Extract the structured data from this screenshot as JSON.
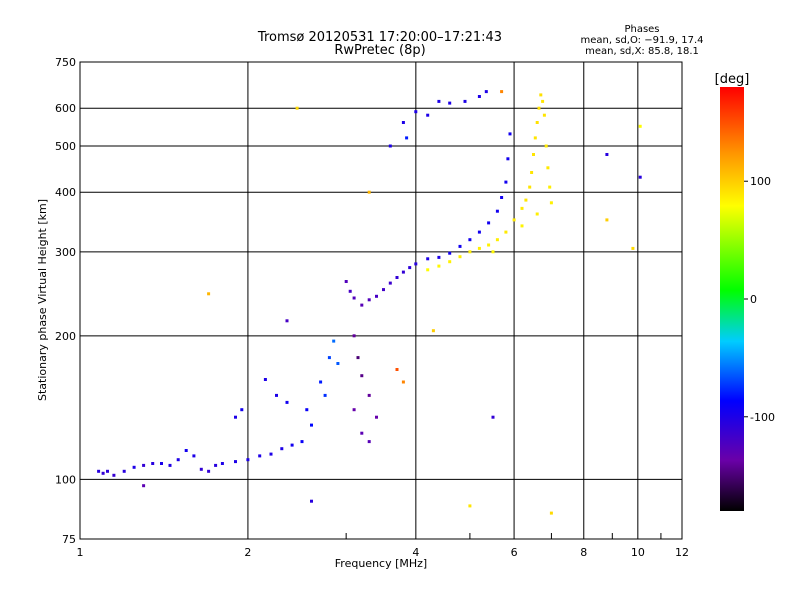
{
  "chart_data": {
    "type": "scatter",
    "title": "Tromsø 20120531 17:20:00–17:21:43",
    "subtitle": "RwPretec (8p)",
    "xlabel": "Frequency [MHz]",
    "ylabel": "Stationary phase Virtual Height [km]",
    "x_scale": "log",
    "y_scale": "log",
    "xlim": [
      1,
      12
    ],
    "ylim": [
      75,
      750
    ],
    "x_ticks": [
      1,
      2,
      4,
      6,
      8,
      10,
      12
    ],
    "y_ticks": [
      75,
      100,
      200,
      300,
      400,
      500,
      600,
      750
    ],
    "grid": true,
    "stats": {
      "heading": "Phases",
      "line1": "mean, sd,O: −91.9, 17.4",
      "line2": "mean, sd,X: 85.8, 18.1"
    },
    "colorbar": {
      "label": "[deg]",
      "range": [
        -180,
        180
      ],
      "ticks": [
        100,
        0,
        -100
      ],
      "colormap": "rainbow"
    },
    "series": [
      {
        "mode": "O",
        "mean_phase": -91.9,
        "points": [
          [
            1.08,
            104,
            -105
          ],
          [
            1.1,
            103,
            -110
          ],
          [
            1.12,
            104,
            -108
          ],
          [
            1.15,
            102,
            -112
          ],
          [
            1.2,
            104,
            -105
          ],
          [
            1.25,
            106,
            -100
          ],
          [
            1.3,
            107,
            -110
          ],
          [
            1.35,
            108,
            -105
          ],
          [
            1.4,
            108,
            -98
          ],
          [
            1.45,
            107,
            -102
          ],
          [
            1.5,
            110,
            -100
          ],
          [
            1.55,
            115,
            -95
          ],
          [
            1.6,
            112,
            -100
          ],
          [
            1.65,
            105,
            -110
          ],
          [
            1.7,
            104,
            -110
          ],
          [
            1.75,
            107,
            -105
          ],
          [
            1.8,
            108,
            -100
          ],
          [
            1.9,
            109,
            -100
          ],
          [
            2.0,
            110,
            -100
          ],
          [
            2.1,
            112,
            -100
          ],
          [
            2.2,
            113,
            -100
          ],
          [
            2.3,
            116,
            -100
          ],
          [
            2.4,
            118,
            -95
          ],
          [
            2.5,
            120,
            -90
          ],
          [
            1.9,
            135,
            -100
          ],
          [
            1.95,
            140,
            -95
          ],
          [
            2.15,
            162,
            -100
          ],
          [
            2.25,
            150,
            -100
          ],
          [
            2.35,
            145,
            -95
          ],
          [
            2.55,
            140,
            -90
          ],
          [
            2.6,
            130,
            -85
          ],
          [
            2.7,
            160,
            -80
          ],
          [
            2.8,
            180,
            -70
          ],
          [
            2.85,
            195,
            -60
          ],
          [
            2.9,
            175,
            -65
          ],
          [
            2.75,
            150,
            -75
          ],
          [
            3.0,
            260,
            -125
          ],
          [
            3.05,
            248,
            -120
          ],
          [
            3.1,
            240,
            -125
          ],
          [
            3.2,
            232,
            -128
          ],
          [
            3.3,
            238,
            -125
          ],
          [
            3.4,
            242,
            -120
          ],
          [
            3.5,
            250,
            -118
          ],
          [
            3.6,
            258,
            -115
          ],
          [
            3.7,
            265,
            -110
          ],
          [
            3.8,
            272,
            -110
          ],
          [
            3.9,
            278,
            -108
          ],
          [
            4.0,
            283,
            -105
          ],
          [
            4.2,
            290,
            -100
          ],
          [
            4.4,
            292,
            -100
          ],
          [
            4.6,
            298,
            -95
          ],
          [
            4.8,
            308,
            -95
          ],
          [
            5.0,
            318,
            -95
          ],
          [
            5.2,
            330,
            -95
          ],
          [
            5.4,
            345,
            -95
          ],
          [
            5.6,
            365,
            -95
          ],
          [
            5.7,
            390,
            -95
          ],
          [
            5.8,
            420,
            -95
          ],
          [
            5.85,
            470,
            -95
          ],
          [
            5.9,
            530,
            -95
          ],
          [
            3.1,
            200,
            -140
          ],
          [
            3.15,
            180,
            -150
          ],
          [
            3.2,
            165,
            -145
          ],
          [
            3.3,
            150,
            -140
          ],
          [
            3.1,
            140,
            -135
          ],
          [
            3.2,
            125,
            -130
          ],
          [
            3.3,
            120,
            -128
          ],
          [
            3.4,
            135,
            -135
          ],
          [
            3.6,
            500,
            -100
          ],
          [
            3.8,
            560,
            -100
          ],
          [
            4.0,
            590,
            -100
          ],
          [
            4.2,
            580,
            -100
          ],
          [
            4.4,
            620,
            -100
          ],
          [
            4.6,
            615,
            -100
          ],
          [
            4.9,
            620,
            -100
          ],
          [
            5.2,
            635,
            -100
          ],
          [
            5.35,
            650,
            -100
          ],
          [
            2.35,
            215,
            -120
          ],
          [
            2.6,
            90,
            -105
          ],
          [
            1.3,
            97,
            -130
          ],
          [
            3.85,
            520,
            -80
          ],
          [
            5.5,
            135,
            -110
          ],
          [
            8.8,
            480,
            -105
          ],
          [
            10.1,
            430,
            -105
          ]
        ]
      },
      {
        "mode": "X",
        "mean_phase": 85.8,
        "points": [
          [
            4.2,
            275,
            80
          ],
          [
            4.4,
            280,
            82
          ],
          [
            4.6,
            286,
            85
          ],
          [
            4.8,
            293,
            86
          ],
          [
            5.0,
            300,
            86
          ],
          [
            5.2,
            305,
            86
          ],
          [
            5.4,
            310,
            85
          ],
          [
            5.6,
            318,
            86
          ],
          [
            5.8,
            330,
            88
          ],
          [
            6.0,
            350,
            88
          ],
          [
            6.2,
            370,
            88
          ],
          [
            6.3,
            385,
            90
          ],
          [
            6.4,
            410,
            90
          ],
          [
            6.45,
            440,
            90
          ],
          [
            6.5,
            480,
            90
          ],
          [
            6.55,
            520,
            90
          ],
          [
            6.6,
            560,
            92
          ],
          [
            6.65,
            600,
            92
          ],
          [
            6.7,
            640,
            92
          ],
          [
            6.75,
            620,
            90
          ],
          [
            6.8,
            580,
            90
          ],
          [
            6.85,
            500,
            88
          ],
          [
            6.9,
            450,
            88
          ],
          [
            6.95,
            410,
            86
          ],
          [
            7.0,
            380,
            85
          ],
          [
            6.6,
            360,
            86
          ],
          [
            6.2,
            340,
            84
          ],
          [
            5.5,
            300,
            82
          ],
          [
            2.45,
            600,
            95
          ],
          [
            1.7,
            245,
            110
          ],
          [
            3.3,
            400,
            110
          ],
          [
            8.8,
            350,
            100
          ],
          [
            9.8,
            305,
            95
          ],
          [
            5.7,
            650,
            130
          ],
          [
            10.1,
            550,
            80
          ],
          [
            7.0,
            85,
            95
          ],
          [
            5.0,
            88,
            90
          ],
          [
            3.7,
            170,
            150
          ],
          [
            3.8,
            160,
            130
          ],
          [
            4.3,
            205,
            100
          ]
        ]
      }
    ]
  }
}
